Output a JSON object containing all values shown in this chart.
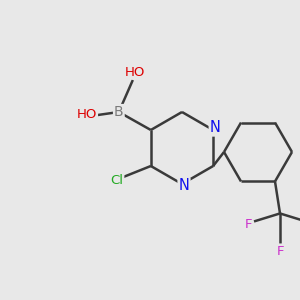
{
  "background_color": "#e8e8e8",
  "bond_color": "#3a3a3a",
  "bond_width": 1.8,
  "atoms": {
    "B": {
      "color": "#7a7a7a"
    },
    "O": {
      "color": "#dd0000"
    },
    "H": {
      "color": "#606060"
    },
    "Cl": {
      "color": "#22aa22"
    },
    "N": {
      "color": "#1010ee"
    },
    "C": {
      "color": "#3a3a3a"
    },
    "F": {
      "color": "#cc33cc"
    }
  },
  "figsize": [
    3.0,
    3.0
  ],
  "dpi": 100
}
